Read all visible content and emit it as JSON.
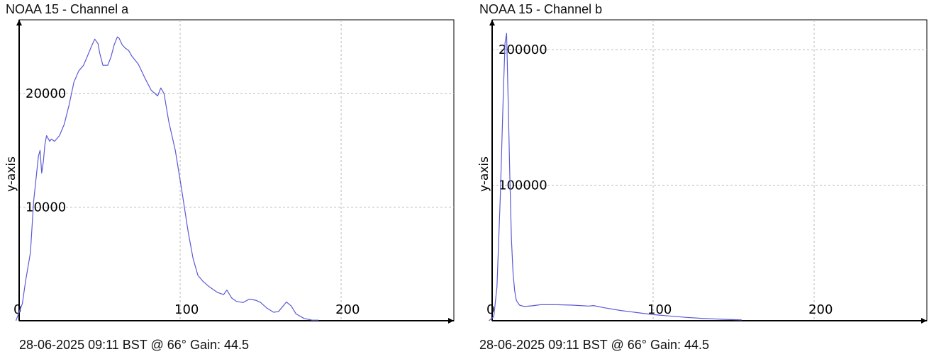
{
  "panels": [
    {
      "title": "NOAA 15 - Channel a",
      "footer": "28-06-2025 09:11 BST @ 66° Gain: 44.5"
    },
    {
      "title": "NOAA 15 - Channel b",
      "footer": "28-06-2025 09:11 BST @ 66° Gain: 44.5"
    }
  ],
  "chart_data": [
    {
      "type": "line",
      "title": "NOAA 15 - Channel a",
      "xlabel": "",
      "ylabel": "y-axis",
      "xlim": [
        0,
        270
      ],
      "ylim": [
        0,
        26500
      ],
      "xticks": [
        "0",
        "100",
        "200"
      ],
      "yticks": [
        "10000",
        "20000"
      ],
      "xtick_values": [
        0,
        100,
        200
      ],
      "ytick_values": [
        10000,
        20000
      ],
      "grid": true,
      "line_color": "#5a5ad6",
      "series": [
        {
          "x": [
            -2,
            2,
            4,
            7,
            9,
            12,
            13,
            14,
            15,
            16,
            17,
            19,
            20,
            22,
            25,
            28,
            31,
            34,
            37,
            40,
            43,
            45,
            47,
            49,
            50,
            52,
            55,
            57,
            59,
            61,
            62,
            64,
            66,
            68,
            70,
            74,
            78,
            82,
            86,
            88,
            90,
            93,
            97,
            101,
            105,
            108,
            111,
            114,
            118,
            123,
            127,
            129,
            132,
            135,
            139,
            143,
            147,
            150,
            154,
            158,
            161,
            164,
            166,
            169,
            172,
            177,
            182,
            186
          ],
          "values": [
            0,
            1500,
            3500,
            6000,
            10500,
            14500,
            15000,
            13000,
            14000,
            15500,
            16300,
            15800,
            16000,
            15800,
            16300,
            17300,
            19000,
            21000,
            22000,
            22500,
            23500,
            24200,
            24800,
            24400,
            23600,
            22500,
            22500,
            23200,
            24300,
            25000,
            24900,
            24300,
            24000,
            23800,
            23300,
            22600,
            21400,
            20300,
            19800,
            20500,
            20000,
            17500,
            15000,
            11500,
            7800,
            5500,
            4000,
            3500,
            3000,
            2500,
            2300,
            2700,
            2000,
            1700,
            1600,
            1900,
            1800,
            1600,
            1100,
            750,
            800,
            1300,
            1650,
            1300,
            600,
            200,
            50,
            50
          ]
        }
      ]
    },
    {
      "type": "line",
      "title": "NOAA 15 - Channel b",
      "xlabel": "",
      "ylabel": "y-axis",
      "xlim": [
        0,
        270
      ],
      "ylim": [
        0,
        222000
      ],
      "xticks": [
        "0",
        "100",
        "200"
      ],
      "yticks": [
        "100000",
        "200000"
      ],
      "xtick_values": [
        0,
        100,
        200
      ],
      "ytick_values": [
        100000,
        200000
      ],
      "grid": true,
      "line_color": "#5a5ad6",
      "series": [
        {
          "x": [
            -2,
            1,
            3,
            5,
            7,
            8,
            9,
            10,
            11,
            12,
            13,
            14,
            15,
            17,
            20,
            25,
            30,
            40,
            50,
            60,
            63,
            70,
            80,
            90,
            100,
            110,
            120,
            130,
            140,
            150,
            155
          ],
          "values": [
            0,
            3000,
            25000,
            90000,
            170000,
            205000,
            212000,
            160000,
            105000,
            60000,
            35000,
            22000,
            15000,
            11500,
            10500,
            11000,
            11800,
            11800,
            11500,
            10800,
            11200,
            9500,
            7500,
            6000,
            4500,
            3500,
            2500,
            1800,
            1200,
            800,
            600
          ]
        }
      ]
    }
  ]
}
